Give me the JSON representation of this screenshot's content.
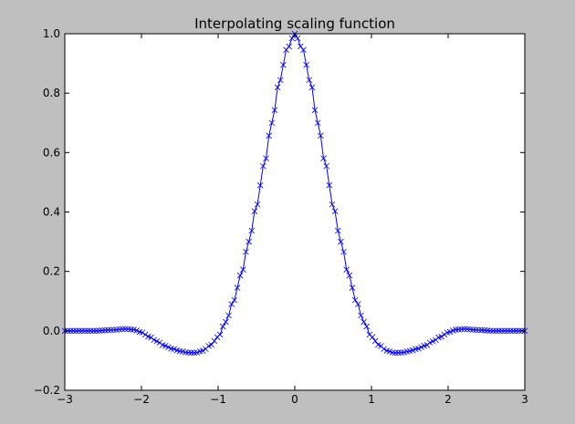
{
  "chart_data": {
    "type": "line",
    "title": "Interpolating scaling function",
    "xlabel": "",
    "ylabel": "",
    "xlim": [
      -3,
      3
    ],
    "ylim": [
      -0.2,
      1.0
    ],
    "grid": false,
    "x_ticks": [
      -3,
      -2,
      -1,
      0,
      1,
      2,
      3
    ],
    "x_tick_labels": [
      "−3",
      "−2",
      "−1",
      "0",
      "1",
      "2",
      "3"
    ],
    "y_ticks": [
      -0.2,
      0.0,
      0.2,
      0.4,
      0.6,
      0.8,
      1.0
    ],
    "y_tick_labels": [
      "−0.2",
      "0.0",
      "0.2",
      "0.4",
      "0.6",
      "0.8",
      "1.0"
    ],
    "series": [
      {
        "color": "#0000ff",
        "marker": "x",
        "x_range": [
          -3,
          3
        ],
        "n_points": 161,
        "points": [
          [
            -3.0,
            0.0
          ],
          [
            -2.6,
            0.0
          ],
          [
            -2.4,
            0.003
          ],
          [
            -2.2,
            0.006
          ],
          [
            -2.1,
            0.004
          ],
          [
            -2.0,
            -0.005
          ],
          [
            -1.9,
            -0.02
          ],
          [
            -1.8,
            -0.035
          ],
          [
            -1.7,
            -0.05
          ],
          [
            -1.6,
            -0.06
          ],
          [
            -1.5,
            -0.068
          ],
          [
            -1.4,
            -0.073
          ],
          [
            -1.3,
            -0.074
          ],
          [
            -1.2,
            -0.067
          ],
          [
            -1.1,
            -0.048
          ],
          [
            -1.0,
            -0.02
          ],
          [
            -0.9,
            0.03
          ],
          [
            -0.8,
            0.1
          ],
          [
            -0.7,
            0.19
          ],
          [
            -0.6,
            0.3
          ],
          [
            -0.5,
            0.42
          ],
          [
            -0.4,
            0.56
          ],
          [
            -0.3,
            0.7
          ],
          [
            -0.2,
            0.84
          ],
          [
            -0.1,
            0.95
          ],
          [
            0.0,
            1.0
          ],
          [
            0.1,
            0.95
          ],
          [
            0.2,
            0.84
          ],
          [
            0.3,
            0.7
          ],
          [
            0.4,
            0.56
          ],
          [
            0.5,
            0.42
          ],
          [
            0.6,
            0.3
          ],
          [
            0.7,
            0.19
          ],
          [
            0.8,
            0.1
          ],
          [
            0.9,
            0.03
          ],
          [
            1.0,
            -0.02
          ],
          [
            1.1,
            -0.048
          ],
          [
            1.2,
            -0.067
          ],
          [
            1.3,
            -0.074
          ],
          [
            1.4,
            -0.073
          ],
          [
            1.5,
            -0.068
          ],
          [
            1.6,
            -0.06
          ],
          [
            1.7,
            -0.05
          ],
          [
            1.8,
            -0.035
          ],
          [
            1.9,
            -0.02
          ],
          [
            2.0,
            -0.005
          ],
          [
            2.1,
            0.004
          ],
          [
            2.2,
            0.006
          ],
          [
            2.4,
            0.003
          ],
          [
            2.6,
            0.0
          ],
          [
            3.0,
            0.0
          ]
        ]
      }
    ]
  }
}
